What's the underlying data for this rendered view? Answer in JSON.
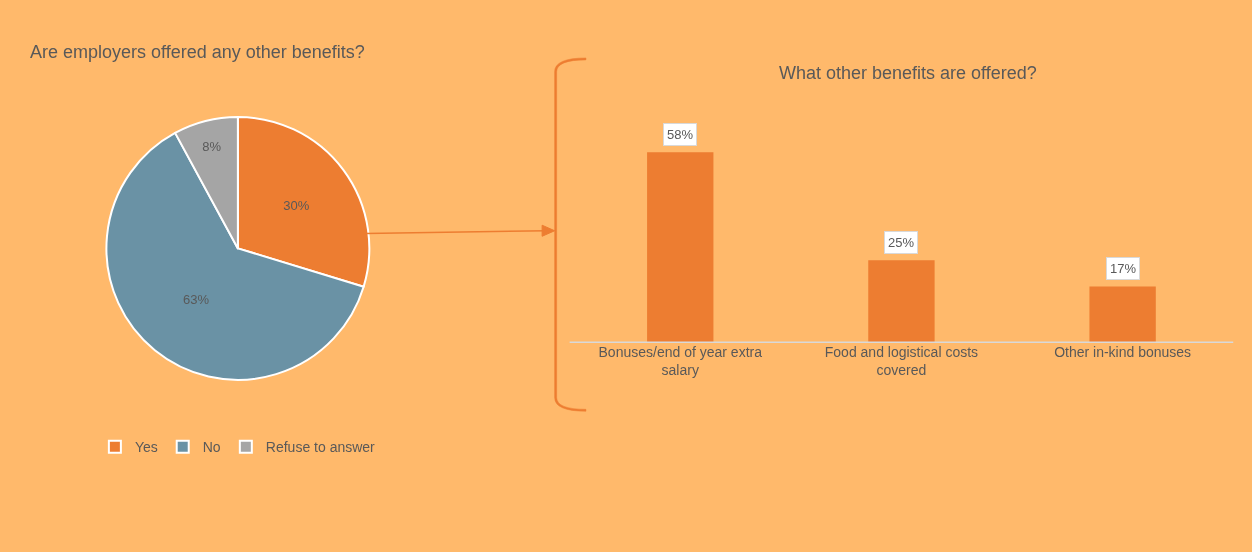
{
  "chart_data": [
    {
      "type": "pie",
      "title": "Are employers offered any other benefits?",
      "categories": [
        "Yes",
        "No",
        "Refuse to answer"
      ],
      "values": [
        30,
        63,
        8
      ],
      "colors": [
        "#ed7d31",
        "#6a92a5",
        "#a5a5a5"
      ],
      "value_labels": [
        "30%",
        "63%",
        "8%"
      ],
      "legend": "bottom"
    },
    {
      "type": "bar",
      "title": "What other benefits are offered?",
      "categories": [
        "Bonuses/end of year extra salary",
        "Food and logistical costs covered",
        "Other in-kind bonuses"
      ],
      "values": [
        58,
        25,
        17
      ],
      "color": "#ed7d31",
      "value_labels": [
        "58%",
        "25%",
        "17%"
      ]
    }
  ]
}
